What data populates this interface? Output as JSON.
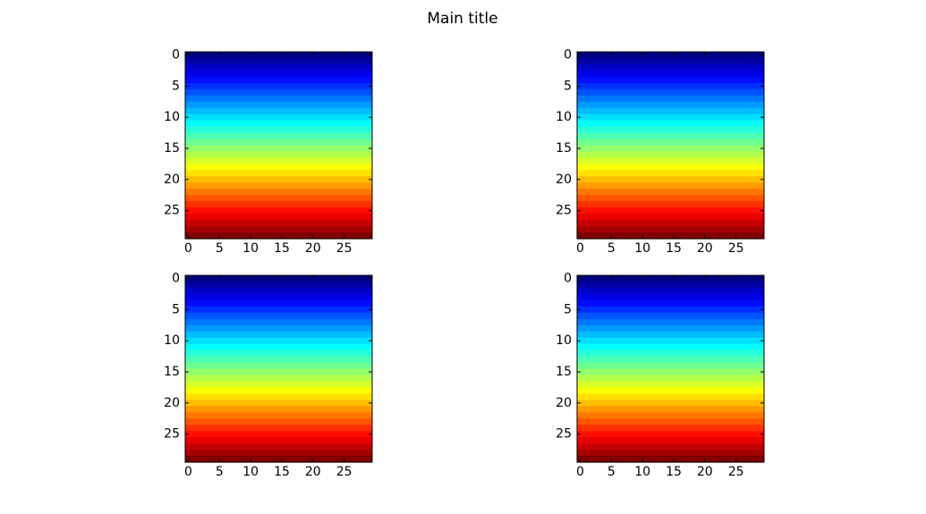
{
  "title": "Main title",
  "chart_data": [
    {
      "type": "heatmap",
      "colormap": "jet",
      "values": [
        0,
        1,
        2,
        3,
        4,
        5,
        6,
        7,
        8,
        9,
        10,
        11,
        12,
        13,
        14,
        15,
        16,
        17,
        18,
        19,
        20,
        21,
        22,
        23,
        24,
        25,
        26,
        27,
        28,
        29
      ],
      "xlim": [
        -0.5,
        29.5
      ],
      "ylim": [
        29.5,
        -0.5
      ],
      "xticks": [
        0,
        5,
        10,
        15,
        20,
        25
      ],
      "yticks": [
        0,
        5,
        10,
        15,
        20,
        25
      ]
    },
    {
      "type": "heatmap",
      "colormap": "jet",
      "values": [
        0,
        1,
        2,
        3,
        4,
        5,
        6,
        7,
        8,
        9,
        10,
        11,
        12,
        13,
        14,
        15,
        16,
        17,
        18,
        19,
        20,
        21,
        22,
        23,
        24,
        25,
        26,
        27,
        28,
        29
      ],
      "xlim": [
        -0.5,
        29.5
      ],
      "ylim": [
        29.5,
        -0.5
      ],
      "xticks": [
        0,
        5,
        10,
        15,
        20,
        25
      ],
      "yticks": [
        0,
        5,
        10,
        15,
        20,
        25
      ]
    },
    {
      "type": "heatmap",
      "colormap": "jet",
      "values": [
        0,
        1,
        2,
        3,
        4,
        5,
        6,
        7,
        8,
        9,
        10,
        11,
        12,
        13,
        14,
        15,
        16,
        17,
        18,
        19,
        20,
        21,
        22,
        23,
        24,
        25,
        26,
        27,
        28,
        29
      ],
      "xlim": [
        -0.5,
        29.5
      ],
      "ylim": [
        29.5,
        -0.5
      ],
      "xticks": [
        0,
        5,
        10,
        15,
        20,
        25
      ],
      "yticks": [
        0,
        5,
        10,
        15,
        20,
        25
      ]
    },
    {
      "type": "heatmap",
      "colormap": "jet",
      "values": [
        0,
        1,
        2,
        3,
        4,
        5,
        6,
        7,
        8,
        9,
        10,
        11,
        12,
        13,
        14,
        15,
        16,
        17,
        18,
        19,
        20,
        21,
        22,
        23,
        24,
        25,
        26,
        27,
        28,
        29
      ],
      "xlim": [
        -0.5,
        29.5
      ],
      "ylim": [
        29.5,
        -0.5
      ],
      "xticks": [
        0,
        5,
        10,
        15,
        20,
        25
      ],
      "yticks": [
        0,
        5,
        10,
        15,
        20,
        25
      ]
    }
  ]
}
